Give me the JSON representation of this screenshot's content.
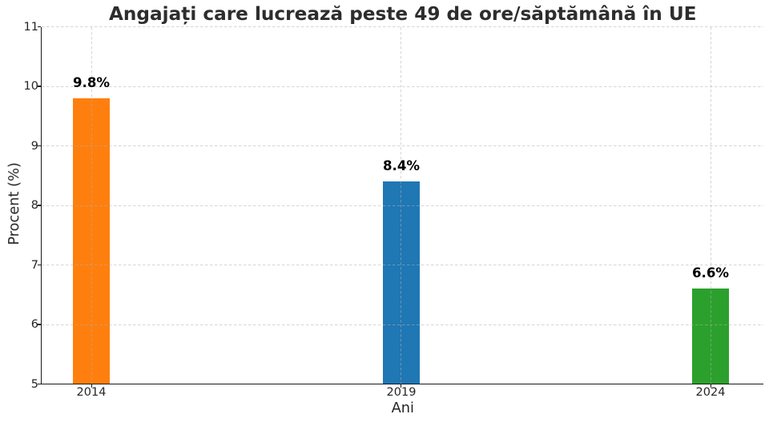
{
  "chart_data": {
    "type": "bar",
    "title": "Angajați care lucrează peste 49 de ore/săptămână în UE",
    "xlabel": "Ani",
    "ylabel": "Procent (%)",
    "categories": [
      "2014",
      "2019",
      "2024"
    ],
    "x": [
      2014,
      2019,
      2024
    ],
    "values": [
      9.8,
      8.4,
      6.6
    ],
    "bar_labels": [
      "9.8%",
      "8.4%",
      "6.6%"
    ],
    "bar_colors": [
      "#ff7f0e",
      "#1f77b4",
      "#2ca02c"
    ],
    "bar_width_x": 0.6,
    "ylim": [
      5,
      11
    ],
    "xlim": [
      2013.19,
      2024.85
    ],
    "yticks": [
      5,
      6,
      7,
      8,
      9,
      10,
      11
    ],
    "ytick_labels": [
      "5",
      "6",
      "7",
      "8",
      "9",
      "10",
      "11"
    ],
    "grid": {
      "on": true,
      "style": "dashed",
      "color": "#cccccc",
      "above_bars": true
    },
    "legend": "none"
  }
}
